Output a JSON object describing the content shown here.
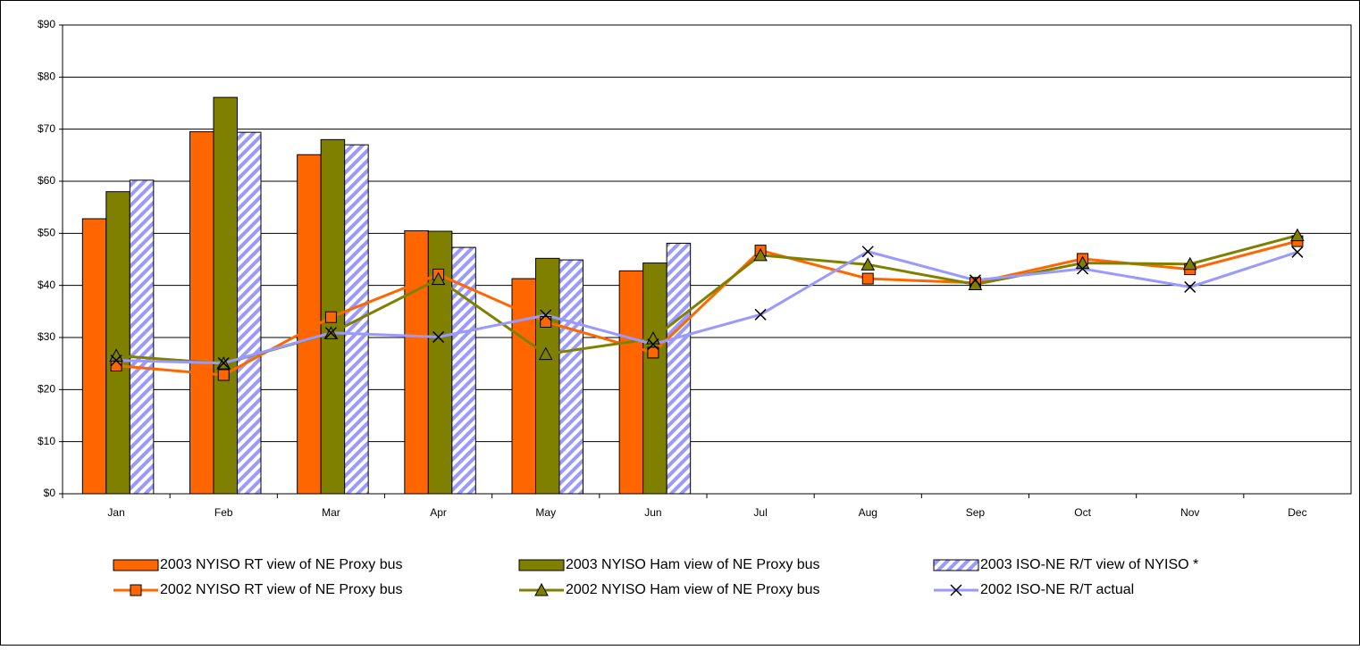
{
  "chart_data": {
    "type": "combo",
    "categories": [
      "Jan",
      "Feb",
      "Mar",
      "Apr",
      "May",
      "Jun",
      "Jul",
      "Aug",
      "Sep",
      "Oct",
      "Nov",
      "Dec"
    ],
    "ylim": [
      0,
      90
    ],
    "yticks": [
      {
        "value": 0,
        "label": "$0"
      },
      {
        "value": 10,
        "label": "$10"
      },
      {
        "value": 20,
        "label": "$20"
      },
      {
        "value": 30,
        "label": "$30"
      },
      {
        "value": 40,
        "label": "$40"
      },
      {
        "value": 50,
        "label": "$50"
      },
      {
        "value": 60,
        "label": "$60"
      },
      {
        "value": 70,
        "label": "$70"
      },
      {
        "value": 80,
        "label": "$80"
      },
      {
        "value": 90,
        "label": "$90"
      }
    ],
    "grid": true,
    "series": [
      {
        "name": "2003 NYISO RT view of NE Proxy bus",
        "kind": "bar",
        "color": "#ff6600",
        "values": [
          52.8,
          69.5,
          65.1,
          50.5,
          41.3,
          42.8,
          null,
          null,
          null,
          null,
          null,
          null
        ]
      },
      {
        "name": "2003 NYISO Ham view of NE Proxy bus",
        "kind": "bar",
        "color": "#808000",
        "values": [
          58.0,
          76.1,
          68.0,
          50.4,
          45.2,
          44.3,
          null,
          null,
          null,
          null,
          null,
          null
        ]
      },
      {
        "name": "2003 ISO-NE R/T view of NYISO *",
        "kind": "bar",
        "hatch": true,
        "color": "#9999ff",
        "values": [
          60.2,
          69.4,
          67.0,
          47.3,
          44.9,
          48.1,
          null,
          null,
          null,
          null,
          null,
          null
        ]
      },
      {
        "name": "2002 NYISO RT view of NE Proxy bus",
        "kind": "line",
        "marker": "square",
        "color": "#ff6600",
        "values": [
          24.6,
          22.8,
          33.9,
          42.1,
          33.0,
          27.1,
          46.7,
          41.3,
          40.5,
          45.1,
          43.1,
          48.5
        ]
      },
      {
        "name": "2002 NYISO Ham view of NE Proxy bus",
        "kind": "line",
        "marker": "triangle",
        "color": "#808000",
        "values": [
          26.5,
          25.0,
          30.8,
          41.2,
          26.8,
          29.8,
          45.8,
          44.0,
          40.2,
          44.3,
          44.1,
          49.6
        ]
      },
      {
        "name": "2002 ISO-NE R/T actual",
        "kind": "line",
        "marker": "x",
        "color": "#9999ff",
        "values": [
          25.6,
          25.1,
          30.9,
          30.1,
          34.3,
          28.7,
          34.4,
          46.5,
          41.0,
          43.2,
          39.7,
          46.4
        ]
      }
    ]
  }
}
